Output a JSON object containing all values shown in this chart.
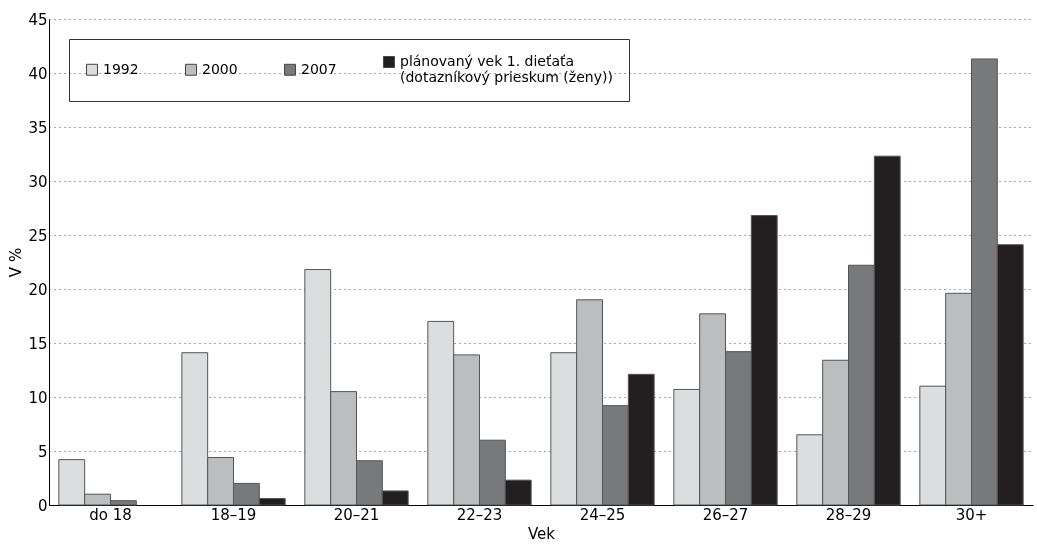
{
  "chart_data": {
    "type": "bar",
    "xlabel": "Vek",
    "ylabel": "V %",
    "categories": [
      "do 18",
      "18–19",
      "20–21",
      "22–23",
      "24–25",
      "26–27",
      "28–29",
      "30+"
    ],
    "series": [
      {
        "name": "1992",
        "color": "#dcdddf",
        "values": [
          4.2,
          14.1,
          21.8,
          17.0,
          14.1,
          10.7,
          6.5,
          11.0
        ]
      },
      {
        "name": "2000",
        "color": "#bcbdbf",
        "values": [
          1.0,
          4.4,
          10.5,
          13.9,
          19.0,
          17.7,
          13.4,
          19.6
        ]
      },
      {
        "name": "2007",
        "color": "#78797b",
        "values": [
          0.4,
          2.0,
          4.1,
          6.0,
          9.2,
          14.2,
          22.2,
          41.3
        ]
      },
      {
        "name": "plánovaný vek 1. dieťaťa\n(dotazníkový prieskum (ženy))",
        "color": "#231f20",
        "values": [
          null,
          0.6,
          1.3,
          2.3,
          12.1,
          26.8,
          32.3,
          24.1
        ]
      }
    ],
    "ylim": [
      0,
      45
    ],
    "yticks": [
      0,
      5,
      10,
      15,
      20,
      25,
      30,
      35,
      40,
      45
    ],
    "grid": "y",
    "legend": "top left"
  }
}
